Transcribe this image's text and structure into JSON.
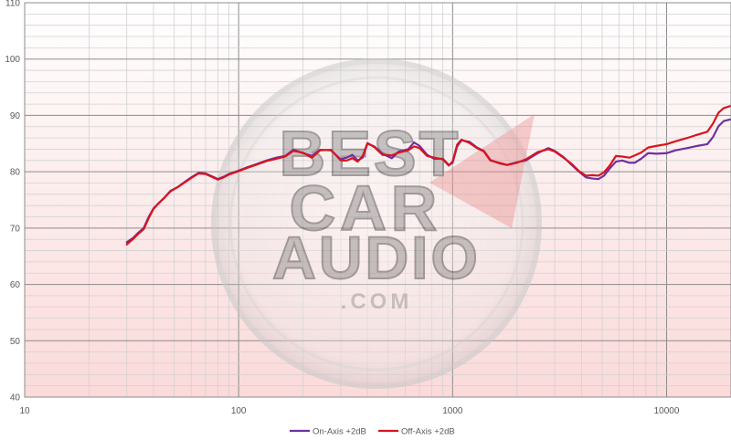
{
  "chart_data": {
    "type": "line",
    "title": "",
    "xlabel": "",
    "ylabel": "",
    "x_scale": "log",
    "xlim": [
      10,
      20000
    ],
    "ylim": [
      40,
      110
    ],
    "grid": true,
    "legend_position": "bottom",
    "x_tick_labels": [
      {
        "value": 10,
        "label": "10"
      },
      {
        "value": 100,
        "label": "100"
      },
      {
        "value": 1000,
        "label": "1000"
      },
      {
        "value": 10000,
        "label": "10000"
      }
    ],
    "y_tick_labels": [
      {
        "value": 40,
        "label": "40"
      },
      {
        "value": 50,
        "label": "50"
      },
      {
        "value": 60,
        "label": "60"
      },
      {
        "value": 70,
        "label": "70"
      },
      {
        "value": 80,
        "label": "80"
      },
      {
        "value": 90,
        "label": "90"
      },
      {
        "value": 100,
        "label": "100"
      },
      {
        "value": 110,
        "label": "110"
      }
    ],
    "watermark": "BEST CAR AUDIO .COM",
    "series": [
      {
        "name": "On-Axis +2dB",
        "color": "#7030a0",
        "points": [
          [
            30,
            67.5
          ],
          [
            32,
            68.2
          ],
          [
            34,
            69.2
          ],
          [
            36,
            70
          ],
          [
            38,
            72
          ],
          [
            40,
            73.5
          ],
          [
            42,
            74.3
          ],
          [
            45,
            75.4
          ],
          [
            48,
            76.6
          ],
          [
            52,
            77.3
          ],
          [
            56,
            78.2
          ],
          [
            60,
            79
          ],
          [
            65,
            79.8
          ],
          [
            70,
            79.7
          ],
          [
            75,
            79.2
          ],
          [
            80,
            78.7
          ],
          [
            85,
            79.1
          ],
          [
            90,
            79.6
          ],
          [
            100,
            80.2
          ],
          [
            110,
            80.8
          ],
          [
            120,
            81.3
          ],
          [
            135,
            82
          ],
          [
            150,
            82.5
          ],
          [
            165,
            82.8
          ],
          [
            180,
            83.9
          ],
          [
            200,
            83.3
          ],
          [
            220,
            82.8
          ],
          [
            240,
            83.9
          ],
          [
            270,
            83.8
          ],
          [
            300,
            82.2
          ],
          [
            320,
            82.5
          ],
          [
            340,
            83
          ],
          [
            360,
            82
          ],
          [
            380,
            82.5
          ],
          [
            400,
            85
          ],
          [
            430,
            84.5
          ],
          [
            470,
            83.2
          ],
          [
            520,
            82.4
          ],
          [
            560,
            83.6
          ],
          [
            620,
            84
          ],
          [
            660,
            85.2
          ],
          [
            700,
            84.6
          ],
          [
            760,
            83
          ],
          [
            820,
            82.3
          ],
          [
            900,
            82.3
          ],
          [
            960,
            81.2
          ],
          [
            1000,
            81.6
          ],
          [
            1050,
            84.5
          ],
          [
            1100,
            85.6
          ],
          [
            1200,
            85.3
          ],
          [
            1300,
            84.3
          ],
          [
            1400,
            83.7
          ],
          [
            1500,
            82.1
          ],
          [
            1650,
            81.5
          ],
          [
            1800,
            81.2
          ],
          [
            2000,
            81.7
          ],
          [
            2200,
            82
          ],
          [
            2500,
            83.3
          ],
          [
            2800,
            84.2
          ],
          [
            3000,
            83.7
          ],
          [
            3300,
            82.6
          ],
          [
            3600,
            81.2
          ],
          [
            3900,
            80
          ],
          [
            4200,
            79
          ],
          [
            4500,
            78.8
          ],
          [
            4800,
            78.7
          ],
          [
            5100,
            79.3
          ],
          [
            5400,
            80.5
          ],
          [
            5800,
            81.8
          ],
          [
            6200,
            82
          ],
          [
            6700,
            81.6
          ],
          [
            7100,
            81.6
          ],
          [
            7600,
            82.3
          ],
          [
            8200,
            83.3
          ],
          [
            9000,
            83.2
          ],
          [
            10000,
            83.3
          ],
          [
            11000,
            83.8
          ],
          [
            12500,
            84.2
          ],
          [
            14000,
            84.6
          ],
          [
            15500,
            84.9
          ],
          [
            16500,
            86.2
          ],
          [
            17500,
            88.1
          ],
          [
            18500,
            89
          ],
          [
            20000,
            89.3
          ]
        ]
      },
      {
        "name": "Off-Axis +2dB",
        "color": "#d9141c",
        "points": [
          [
            30,
            67.1
          ],
          [
            32,
            68
          ],
          [
            34,
            69
          ],
          [
            36,
            69.8
          ],
          [
            38,
            71.8
          ],
          [
            40,
            73.4
          ],
          [
            42,
            74.3
          ],
          [
            45,
            75.4
          ],
          [
            48,
            76.5
          ],
          [
            52,
            77.3
          ],
          [
            56,
            78.1
          ],
          [
            60,
            78.9
          ],
          [
            65,
            79.7
          ],
          [
            70,
            79.6
          ],
          [
            75,
            79.1
          ],
          [
            80,
            78.6
          ],
          [
            85,
            79
          ],
          [
            90,
            79.5
          ],
          [
            100,
            80.1
          ],
          [
            110,
            80.7
          ],
          [
            120,
            81.2
          ],
          [
            135,
            81.9
          ],
          [
            150,
            82.3
          ],
          [
            165,
            82.7
          ],
          [
            180,
            83.7
          ],
          [
            200,
            83.4
          ],
          [
            220,
            82.5
          ],
          [
            240,
            83.8
          ],
          [
            270,
            83.9
          ],
          [
            300,
            82
          ],
          [
            320,
            82
          ],
          [
            340,
            82.4
          ],
          [
            360,
            81.8
          ],
          [
            380,
            82.8
          ],
          [
            400,
            85.1
          ],
          [
            430,
            84.4
          ],
          [
            470,
            83
          ],
          [
            520,
            82.9
          ],
          [
            560,
            83.4
          ],
          [
            620,
            83.8
          ],
          [
            660,
            84.5
          ],
          [
            700,
            84.2
          ],
          [
            760,
            82.8
          ],
          [
            820,
            82.5
          ],
          [
            900,
            82.2
          ],
          [
            960,
            81.1
          ],
          [
            1000,
            81.8
          ],
          [
            1050,
            84.8
          ],
          [
            1100,
            85.7
          ],
          [
            1200,
            85.1
          ],
          [
            1300,
            84.2
          ],
          [
            1400,
            83.6
          ],
          [
            1500,
            82
          ],
          [
            1650,
            81.6
          ],
          [
            1800,
            81.2
          ],
          [
            2000,
            81.6
          ],
          [
            2200,
            82.2
          ],
          [
            2500,
            83.5
          ],
          [
            2800,
            84
          ],
          [
            3000,
            83.6
          ],
          [
            3300,
            82.5
          ],
          [
            3600,
            81.4
          ],
          [
            3900,
            80.1
          ],
          [
            4200,
            79.3
          ],
          [
            4500,
            79.4
          ],
          [
            4800,
            79.3
          ],
          [
            5100,
            79.9
          ],
          [
            5400,
            81
          ],
          [
            5800,
            82.8
          ],
          [
            6200,
            82.7
          ],
          [
            6700,
            82.5
          ],
          [
            7100,
            82.9
          ],
          [
            7600,
            83.4
          ],
          [
            8200,
            84.3
          ],
          [
            9000,
            84.6
          ],
          [
            10000,
            84.9
          ],
          [
            11000,
            85.4
          ],
          [
            12500,
            86
          ],
          [
            14000,
            86.6
          ],
          [
            15500,
            87.1
          ],
          [
            16500,
            88.6
          ],
          [
            17500,
            90.5
          ],
          [
            18500,
            91.3
          ],
          [
            20000,
            91.7
          ]
        ]
      }
    ]
  }
}
